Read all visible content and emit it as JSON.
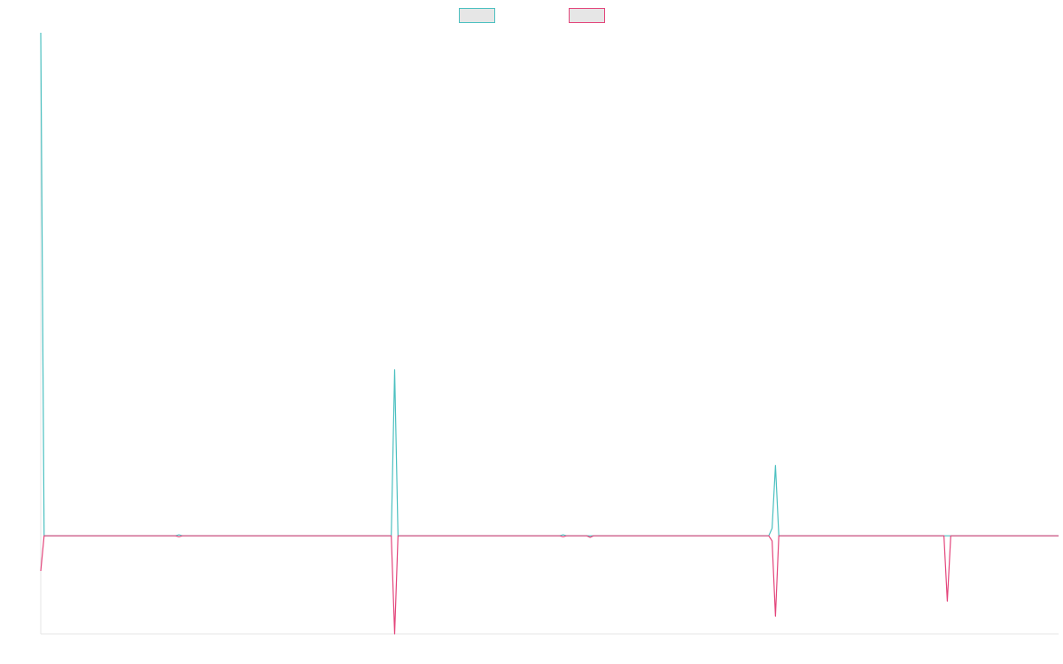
{
  "chart_data": {
    "type": "line",
    "title": "",
    "xlabel": "",
    "ylabel": "",
    "grid": false,
    "legend_position": "top",
    "series": [
      {
        "color": "#4bc0c0",
        "points": [
          [
            0,
            1.0
          ],
          [
            1,
            0.0
          ],
          [
            40,
            0.0
          ],
          [
            41,
            0.002
          ],
          [
            42,
            0.0
          ],
          [
            104,
            0.0
          ],
          [
            105,
            0.33
          ],
          [
            106,
            0.0
          ],
          [
            154,
            0.0
          ],
          [
            155,
            0.002
          ],
          [
            156,
            0.0
          ],
          [
            216,
            0.0
          ],
          [
            217,
            0.015
          ],
          [
            218,
            0.14
          ],
          [
            219,
            0.0
          ],
          [
            302,
            0.0
          ]
        ]
      },
      {
        "color": "#e3457b",
        "points": [
          [
            0,
            -0.07
          ],
          [
            1,
            0.0
          ],
          [
            40,
            0.0
          ],
          [
            41,
            -0.002
          ],
          [
            42,
            0.0
          ],
          [
            104,
            0.0
          ],
          [
            105,
            -0.195
          ],
          [
            106,
            0.0
          ],
          [
            154,
            0.0
          ],
          [
            155,
            -0.002
          ],
          [
            156,
            0.0
          ],
          [
            162,
            0.0
          ],
          [
            163,
            -0.003
          ],
          [
            164,
            0.0
          ],
          [
            216,
            0.0
          ],
          [
            217,
            -0.01
          ],
          [
            218,
            -0.16
          ],
          [
            219,
            0.0
          ],
          [
            268,
            0.0
          ],
          [
            269,
            -0.13
          ],
          [
            270,
            0.0
          ],
          [
            302,
            0.0
          ]
        ]
      }
    ],
    "xlim": [
      0,
      302
    ],
    "ylim": [
      -0.195,
      1.0
    ]
  }
}
